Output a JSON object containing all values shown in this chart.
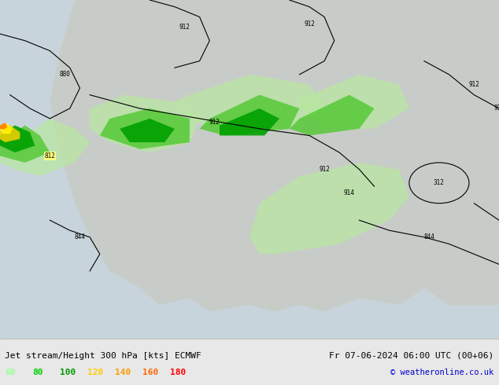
{
  "title_left": "Jet stream/Height 300 hPa [kts] ECMWF",
  "title_right": "Fr 07-06-2024 06:00 UTC (00+06)",
  "copyright": "© weatheronline.co.uk",
  "legend_values": [
    "60",
    "80",
    "100",
    "120",
    "140",
    "160",
    "180"
  ],
  "legend_colors": [
    "#99ff99",
    "#00cc00",
    "#009900",
    "#ffcc00",
    "#ff9900",
    "#ff6600",
    "#ff0000"
  ],
  "bg_color": "#e8e8e8",
  "map_bg": "#f0f0f0",
  "bottom_bar_color": "#ffffff",
  "figsize": [
    6.34,
    4.9
  ],
  "dpi": 100
}
